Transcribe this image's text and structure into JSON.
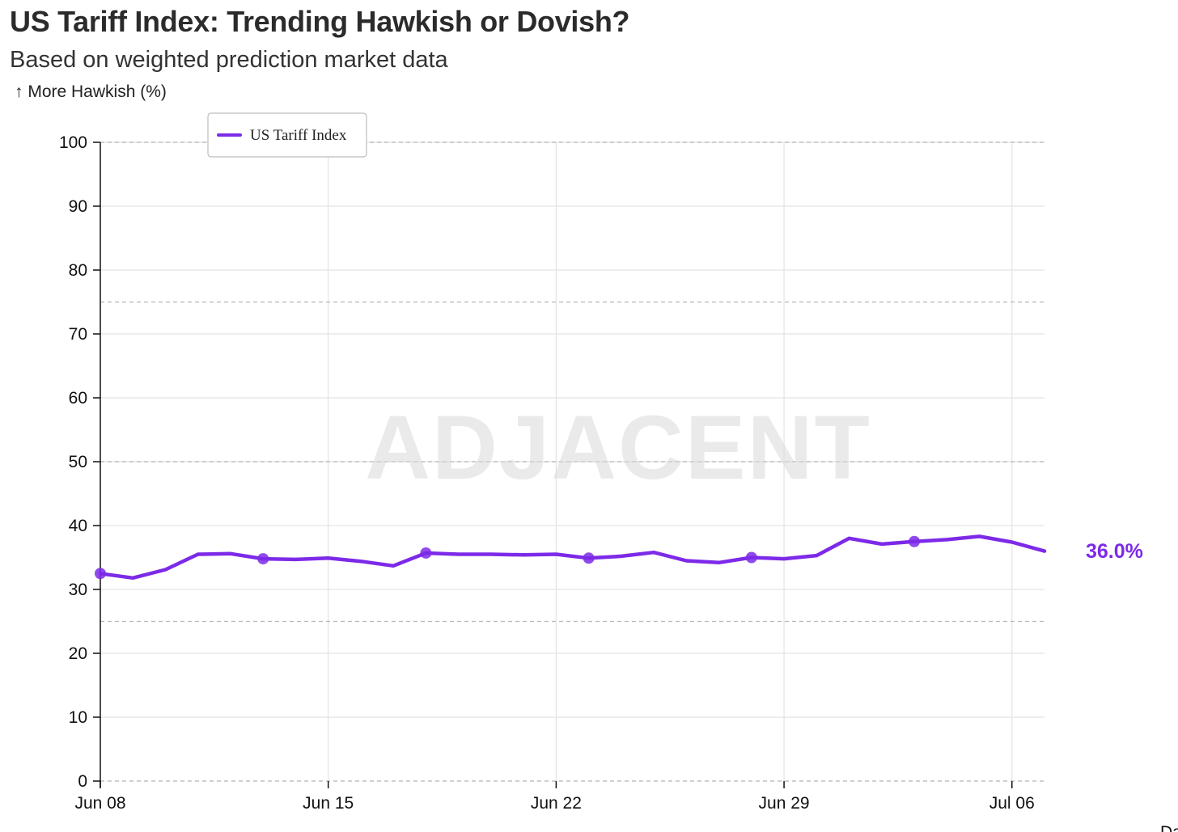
{
  "chart_data": {
    "type": "line",
    "title": "US Tariff Index: Trending Hawkish or Dovish?",
    "subtitle": "Based on weighted prediction market data",
    "ylabel": "↑ More Hawkish (%)",
    "xlabel": "Date",
    "ylim": [
      0,
      100
    ],
    "yticks": [
      0,
      10,
      20,
      30,
      40,
      50,
      60,
      70,
      80,
      90,
      100
    ],
    "reference_lines": [
      25,
      50,
      75,
      100
    ],
    "xlim": [
      "2025-06-08",
      "2025-07-07"
    ],
    "xticks": [
      {
        "date": "2025-06-08",
        "label": "Jun 08"
      },
      {
        "date": "2025-06-15",
        "label": "Jun 15"
      },
      {
        "date": "2025-06-22",
        "label": "Jun 22"
      },
      {
        "date": "2025-06-29",
        "label": "Jun 29"
      },
      {
        "date": "2025-07-06",
        "label": "Jul 06"
      }
    ],
    "grid": true,
    "legend": "top-left",
    "watermark": "ADJACENT",
    "last_value_label": "36.0%",
    "series": [
      {
        "name": "US Tariff Index",
        "color": "#7d2ae8",
        "x": [
          "2025-06-08",
          "2025-06-09",
          "2025-06-10",
          "2025-06-11",
          "2025-06-12",
          "2025-06-13",
          "2025-06-14",
          "2025-06-15",
          "2025-06-16",
          "2025-06-17",
          "2025-06-18",
          "2025-06-19",
          "2025-06-20",
          "2025-06-21",
          "2025-06-22",
          "2025-06-23",
          "2025-06-24",
          "2025-06-25",
          "2025-06-26",
          "2025-06-27",
          "2025-06-28",
          "2025-06-29",
          "2025-06-30",
          "2025-07-01",
          "2025-07-02",
          "2025-07-03",
          "2025-07-04",
          "2025-07-05",
          "2025-07-06",
          "2025-07-07"
        ],
        "values": [
          32.5,
          31.8,
          33.1,
          35.5,
          35.6,
          34.8,
          34.7,
          34.9,
          34.4,
          33.7,
          35.7,
          35.5,
          35.5,
          35.4,
          35.5,
          34.9,
          35.2,
          35.8,
          34.5,
          34.2,
          35.0,
          34.8,
          35.3,
          38.0,
          37.1,
          37.5,
          37.8,
          38.3,
          37.4,
          36.0
        ],
        "markers": [
          "2025-06-08",
          "2025-06-13",
          "2025-06-18",
          "2025-06-23",
          "2025-06-28",
          "2025-07-03"
        ]
      }
    ]
  }
}
